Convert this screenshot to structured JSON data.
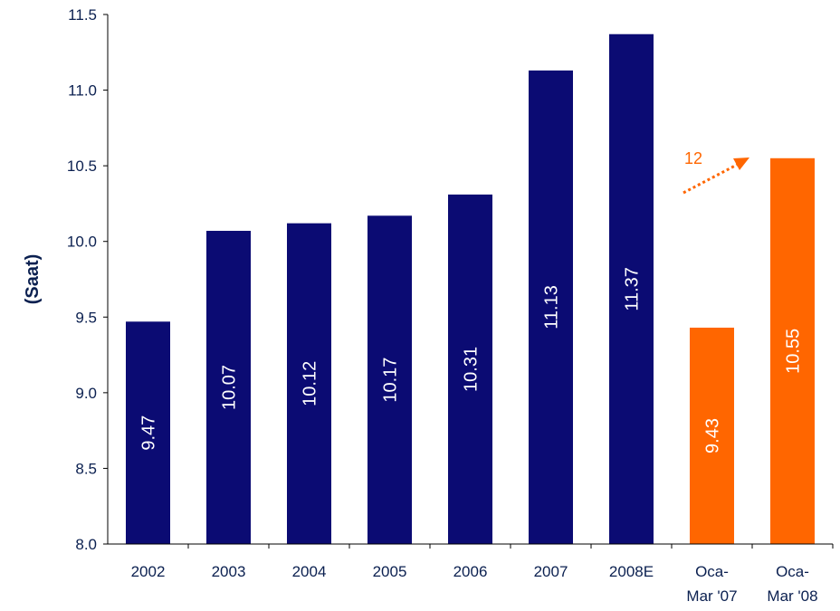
{
  "chart_data": {
    "type": "bar",
    "title": "",
    "xlabel": "",
    "ylabel": "(Saat)",
    "ylim": [
      8.0,
      11.5
    ],
    "yticks": [
      "8.0",
      "8.5",
      "9.0",
      "9.5",
      "10.0",
      "10.5",
      "11.0",
      "11.5"
    ],
    "grid": false,
    "categories": [
      [
        "2002"
      ],
      [
        "2003"
      ],
      [
        "2004"
      ],
      [
        "2005"
      ],
      [
        "2006"
      ],
      [
        "2007"
      ],
      [
        "2008E"
      ],
      [
        "Oca-",
        "Mar '07"
      ],
      [
        "Oca-",
        "Mar '08"
      ]
    ],
    "values": [
      9.47,
      10.07,
      10.12,
      10.17,
      10.31,
      11.13,
      11.37,
      9.43,
      10.55
    ],
    "value_labels": [
      "9.47",
      "10.07",
      "10.12",
      "10.17",
      "10.31",
      "11.13",
      "11.37",
      "9.43",
      "10.55"
    ],
    "bar_colors": [
      "#0b0b73",
      "#0b0b73",
      "#0b0b73",
      "#0b0b73",
      "#0b0b73",
      "#0b0b73",
      "#0b0b73",
      "#ff6600",
      "#ff6600"
    ],
    "annotation": {
      "text": "12",
      "color": "#ff6600"
    }
  },
  "colors": {
    "axis": "#000000",
    "ylabel": "#0b2050",
    "tick_text": "#0b2050",
    "bar_label": "#ffffff"
  }
}
